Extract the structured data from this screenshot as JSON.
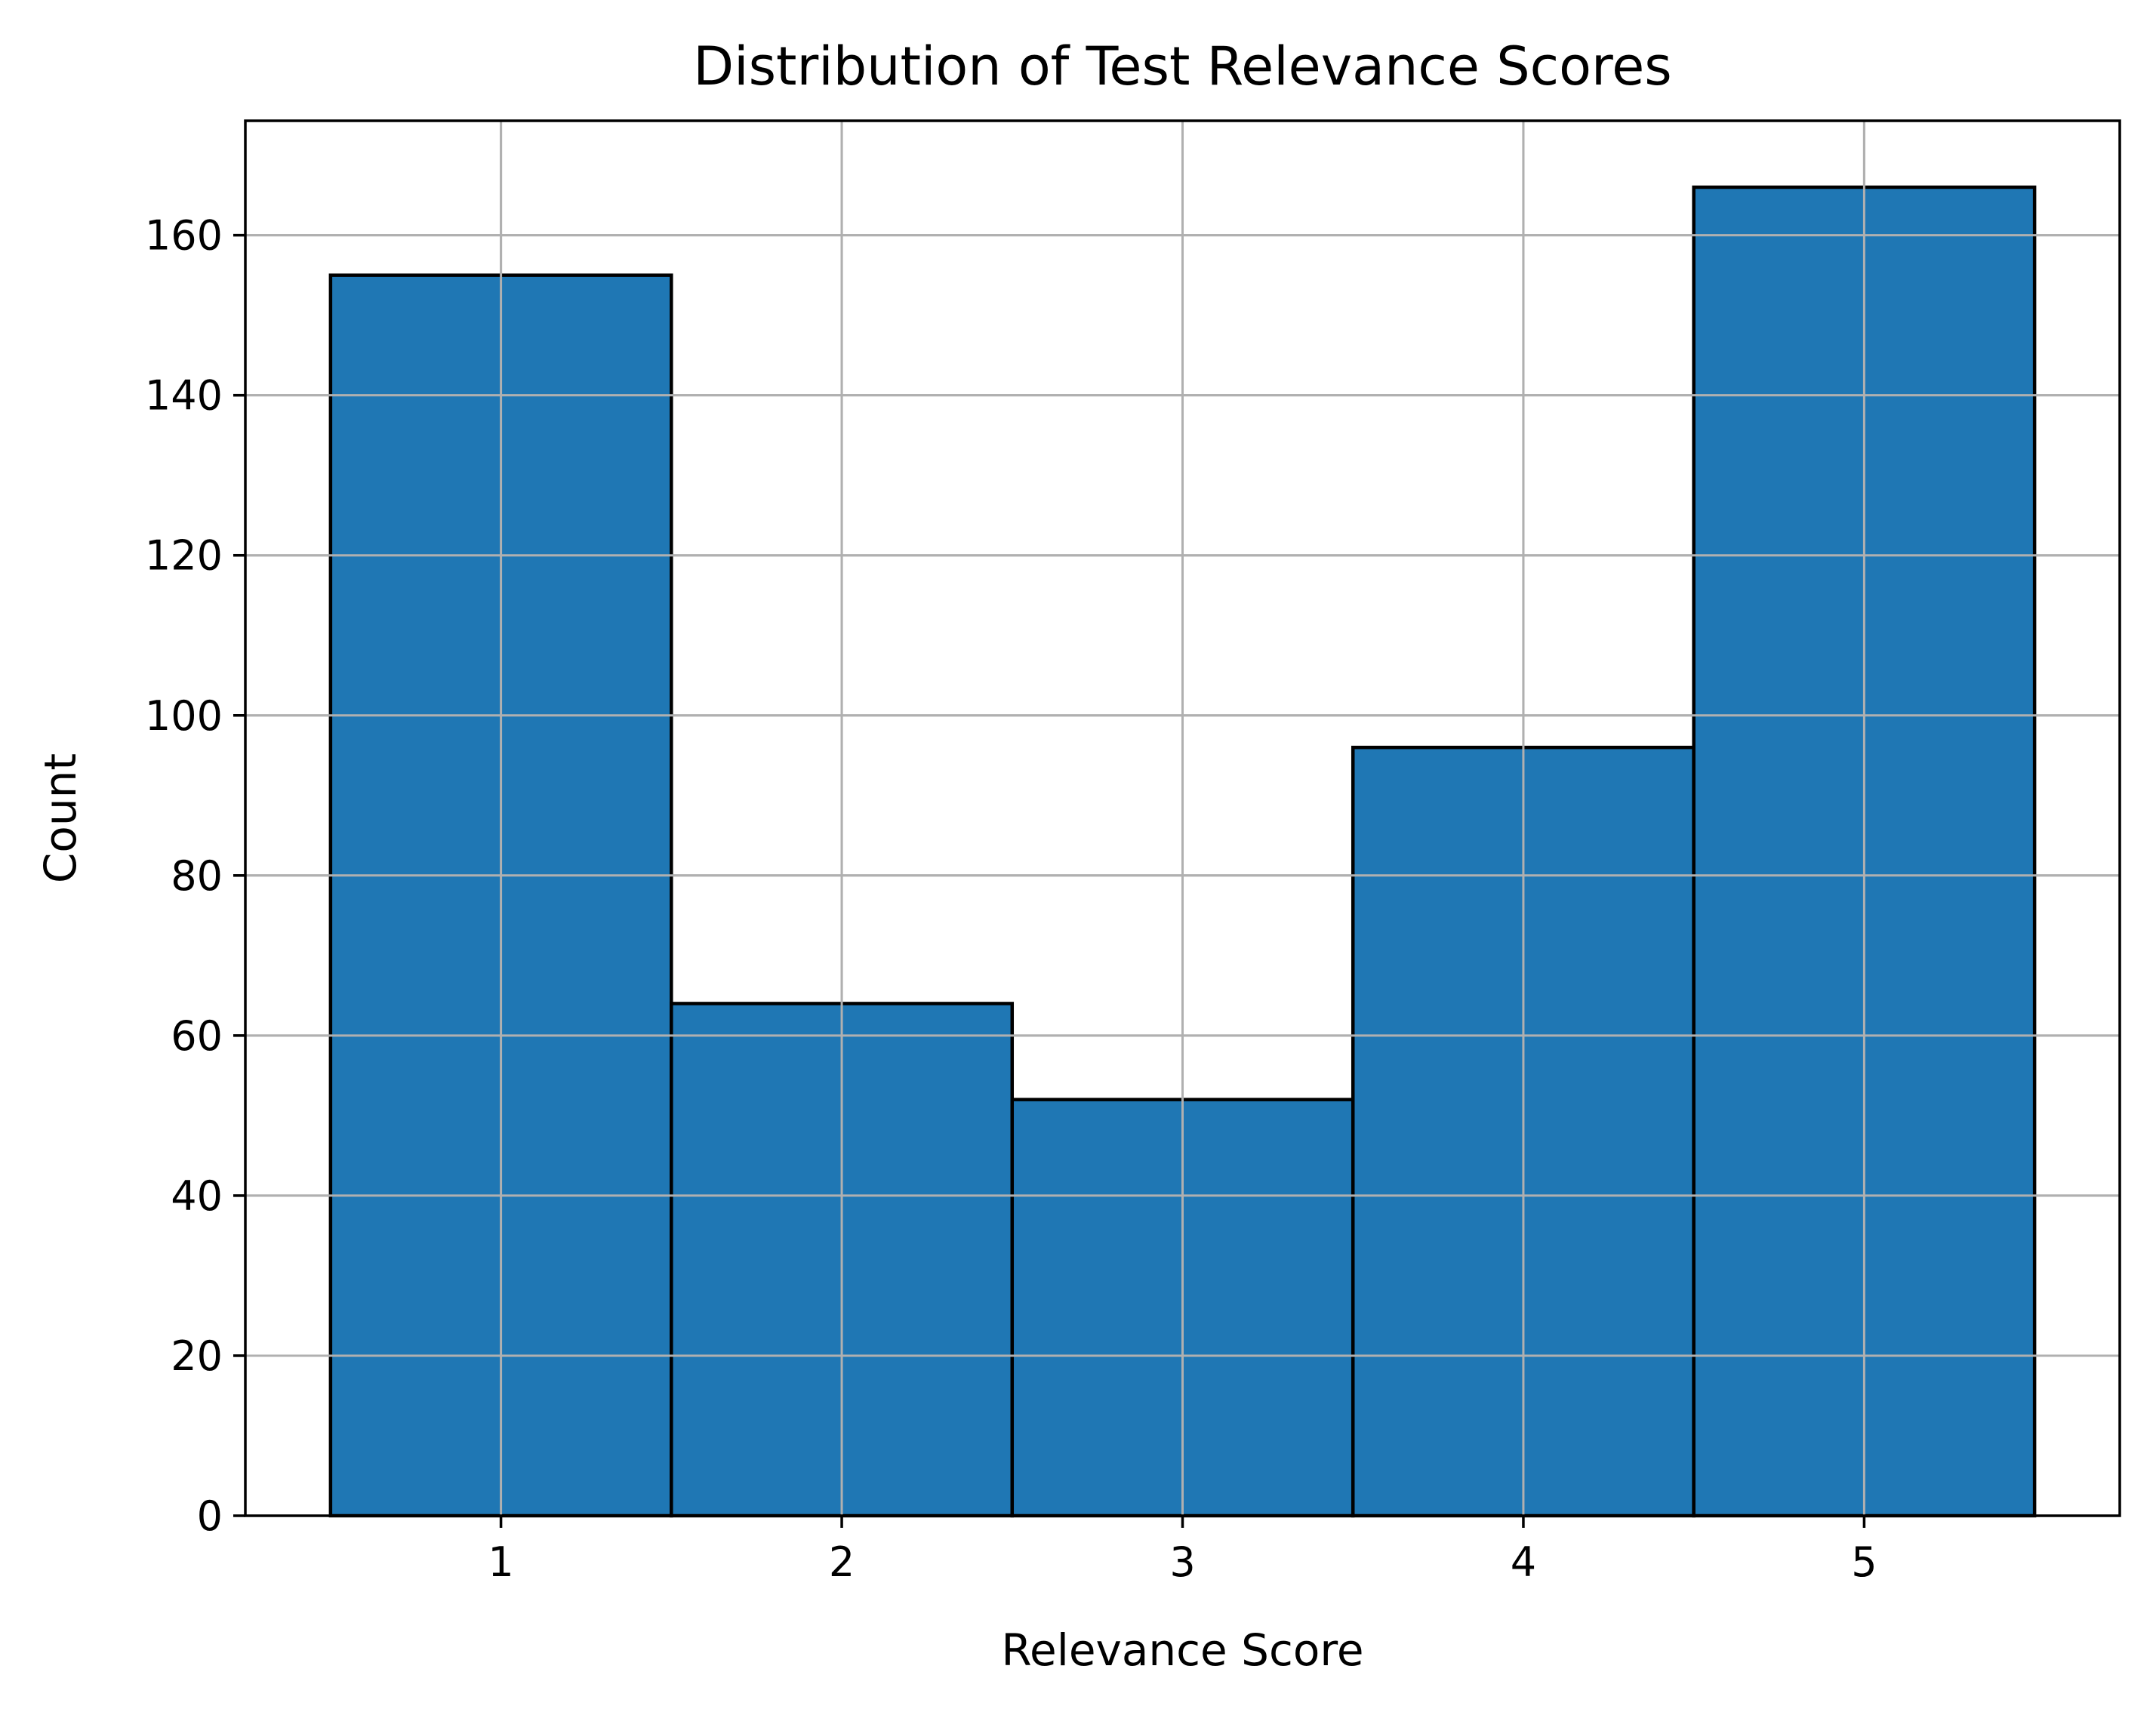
{
  "chart_data": {
    "type": "bar",
    "title": "Distribution of Test Relevance Scores",
    "xlabel": "Relevance Score",
    "ylabel": "Count",
    "categories": [
      "1",
      "2",
      "3",
      "4",
      "5"
    ],
    "x": [
      1,
      2,
      3,
      4,
      5
    ],
    "values": [
      155,
      64,
      52,
      96,
      166
    ],
    "bin_width": 1,
    "xlim": [
      0.25,
      5.75
    ],
    "ylim": [
      0,
      174.3
    ],
    "x_ticks": [
      1,
      2,
      3,
      4,
      5
    ],
    "x_tick_labels": [
      "1",
      "2",
      "3",
      "4",
      "5"
    ],
    "y_ticks": [
      0,
      20,
      40,
      60,
      80,
      100,
      120,
      140,
      160
    ],
    "y_tick_labels": [
      "0",
      "20",
      "40",
      "60",
      "80",
      "100",
      "120",
      "140",
      "160"
    ],
    "grid": true,
    "legend": "none",
    "colors": {
      "bar_fill": "#1f77b4",
      "bar_edge": "#000000",
      "grid": "#b0b0b0",
      "axes": "#000000"
    }
  }
}
